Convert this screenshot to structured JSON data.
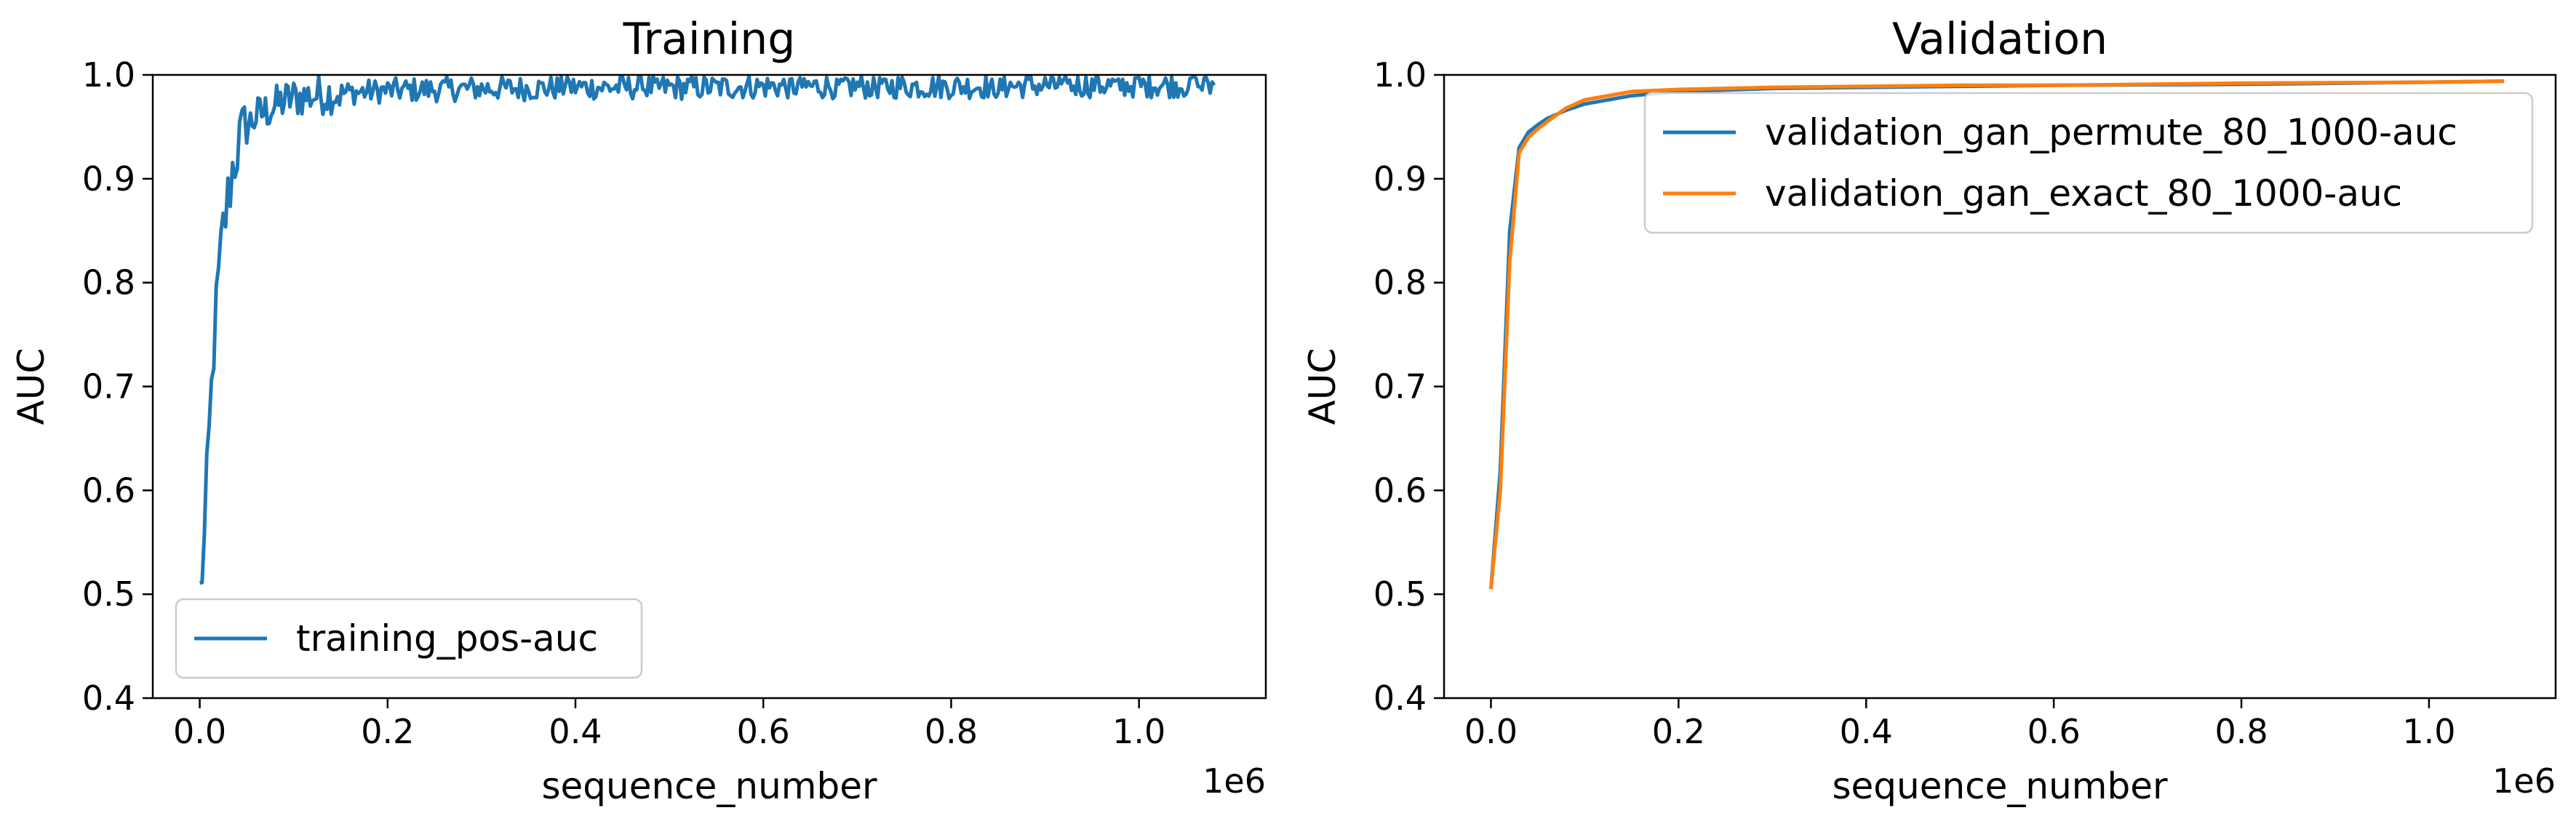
{
  "chart_data": [
    {
      "type": "line",
      "title": "Training",
      "xlabel": "sequence_number",
      "ylabel": "AUC",
      "x_offset_text": "1e6",
      "xlim": [
        -0.05,
        1.135
      ],
      "ylim": [
        0.4,
        1.0
      ],
      "xticks": [
        "0.0",
        "0.2",
        "0.4",
        "0.6",
        "0.8",
        "1.0"
      ],
      "yticks": [
        "0.4",
        "0.5",
        "0.6",
        "0.7",
        "0.8",
        "0.9",
        "1.0"
      ],
      "grid": false,
      "legend_position": "lower left",
      "series": [
        {
          "name": "training_pos-auc",
          "color": "#1f77b4",
          "x": [
            0.0,
            0.005,
            0.01,
            0.015,
            0.02,
            0.025,
            0.03,
            0.035,
            0.04,
            0.045,
            0.05,
            0.06,
            0.07,
            0.08,
            0.09,
            0.1,
            0.12,
            0.14,
            0.16,
            0.18,
            0.2,
            0.25,
            0.3,
            0.35,
            0.4,
            0.45,
            0.5,
            0.55,
            0.6,
            0.65,
            0.7,
            0.75,
            0.8,
            0.85,
            0.9,
            0.95,
            1.0,
            1.05,
            1.08
          ],
          "y": [
            0.5,
            0.55,
            0.65,
            0.74,
            0.8,
            0.85,
            0.88,
            0.91,
            0.93,
            0.94,
            0.95,
            0.96,
            0.965,
            0.97,
            0.975,
            0.978,
            0.98,
            0.982,
            0.983,
            0.984,
            0.985,
            0.986,
            0.987,
            0.987,
            0.988,
            0.988,
            0.988,
            0.988,
            0.989,
            0.989,
            0.989,
            0.989,
            0.989,
            0.989,
            0.99,
            0.99,
            0.99,
            0.99,
            0.99
          ]
        }
      ]
    },
    {
      "type": "line",
      "title": "Validation",
      "xlabel": "sequence_number",
      "ylabel": "AUC",
      "x_offset_text": "1e6",
      "xlim": [
        -0.05,
        1.135
      ],
      "ylim": [
        0.4,
        1.0
      ],
      "xticks": [
        "0.0",
        "0.2",
        "0.4",
        "0.6",
        "0.8",
        "1.0"
      ],
      "yticks": [
        "0.4",
        "0.5",
        "0.6",
        "0.7",
        "0.8",
        "0.9",
        "1.0"
      ],
      "grid": false,
      "legend_position": "upper right",
      "series": [
        {
          "name": "validation_gan_permute_80_1000-auc",
          "color": "#1f77b4",
          "x": [
            0.0,
            0.01,
            0.02,
            0.03,
            0.04,
            0.05,
            0.06,
            0.08,
            0.1,
            0.15,
            0.2,
            0.3,
            0.4,
            0.5,
            0.6,
            0.8,
            1.0,
            1.08
          ],
          "y": [
            0.505,
            0.62,
            0.85,
            0.93,
            0.945,
            0.952,
            0.958,
            0.966,
            0.972,
            0.98,
            0.984,
            0.987,
            0.988,
            0.989,
            0.99,
            0.991,
            0.993,
            0.994
          ]
        },
        {
          "name": "validation_gan_exact_80_1000-auc",
          "color": "#ff7f0e",
          "x": [
            0.0,
            0.01,
            0.02,
            0.03,
            0.04,
            0.05,
            0.06,
            0.08,
            0.1,
            0.15,
            0.2,
            0.3,
            0.4,
            0.5,
            0.6,
            0.8,
            1.0,
            1.08
          ],
          "y": [
            0.505,
            0.6,
            0.82,
            0.925,
            0.94,
            0.948,
            0.955,
            0.968,
            0.976,
            0.984,
            0.986,
            0.988,
            0.989,
            0.99,
            0.99,
            0.992,
            0.993,
            0.994
          ]
        }
      ]
    }
  ]
}
